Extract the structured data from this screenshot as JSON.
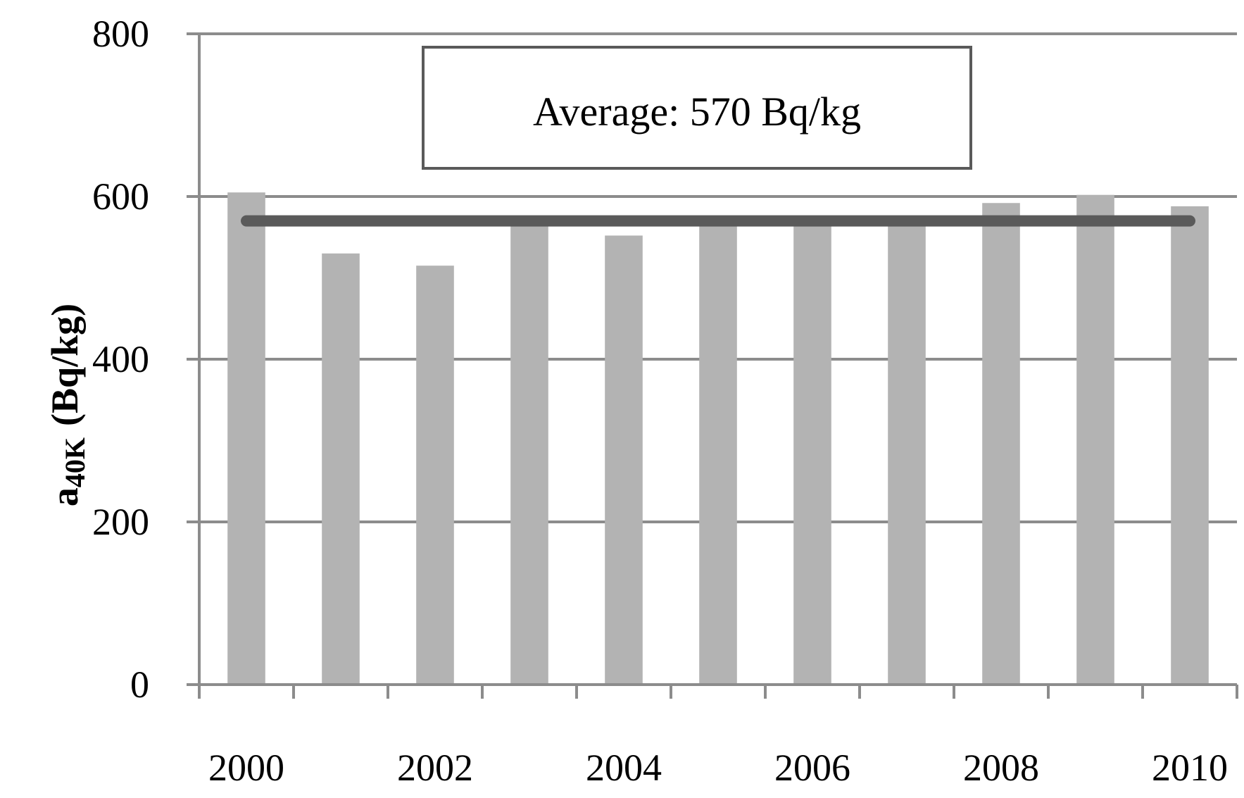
{
  "chart_data": {
    "type": "bar",
    "title": "",
    "xlabel": "",
    "ylabel": {
      "main": "a",
      "subscript": "40K",
      "units": "(Bq/kg)"
    },
    "x": [
      2000,
      2001,
      2002,
      2003,
      2004,
      2005,
      2006,
      2007,
      2008,
      2009,
      2010
    ],
    "values": [
      605,
      530,
      515,
      568,
      552,
      570,
      570,
      570,
      592,
      602,
      588
    ],
    "xticks": [
      "2000",
      "2002",
      "2004",
      "2006",
      "2008",
      "2010"
    ],
    "ylim": [
      0,
      800
    ],
    "yticks": [
      "0",
      "200",
      "400",
      "600",
      "800"
    ],
    "grid": "horizontal",
    "bar_color": "#b3b3b3",
    "average": {
      "value": 570,
      "color": "#5a5a5a",
      "label": "Average: 570 Bq/kg"
    }
  }
}
